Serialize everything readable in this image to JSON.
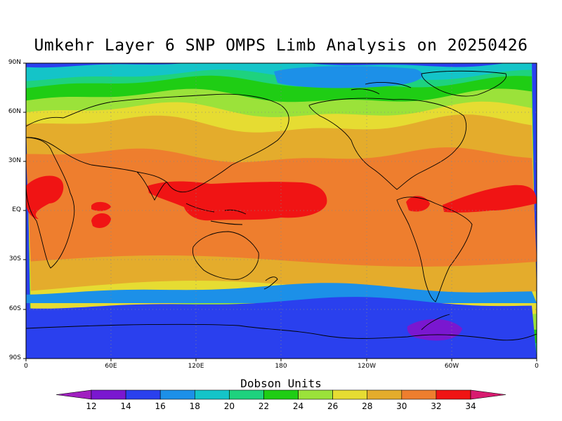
{
  "title": "Umkehr Layer 6 SNP OMPS Limb Analysis on 20250426",
  "y_axis_labels": [
    "90N",
    "60N",
    "30N",
    "EQ",
    "30S",
    "60S",
    "90S"
  ],
  "x_axis_labels": [
    "0",
    "60E",
    "120E",
    "180",
    "120W",
    "60W",
    "0"
  ],
  "colorbar": {
    "title": "Dobson Units",
    "levels": [
      "12",
      "14",
      "16",
      "18",
      "20",
      "22",
      "24",
      "26",
      "28",
      "30",
      "32",
      "34"
    ],
    "colors": [
      "#a020c0",
      "#7a17d0",
      "#2a40ee",
      "#1c90e8",
      "#14c4c8",
      "#1ed27e",
      "#1fcd14",
      "#9be23a",
      "#e6dc32",
      "#e4ac2c",
      "#ee7e2e",
      "#f01414",
      "#d81b70"
    ]
  },
  "map": {
    "lon_range": [
      0,
      360
    ],
    "lat_range": [
      -90,
      90
    ],
    "grid": "dotted lines every 60 degrees longitude and 30 degrees latitude",
    "pattern": "zonal bands: low values at both poles, highest values (32-34+) in the tropics"
  }
}
